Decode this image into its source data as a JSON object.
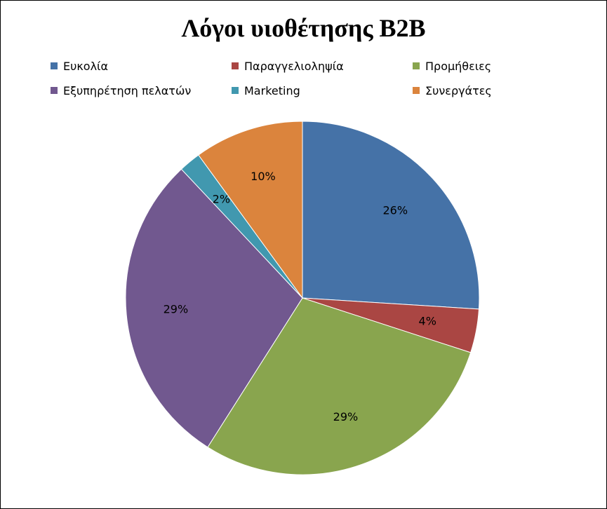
{
  "chart_data": {
    "type": "pie",
    "title": "Λόγοι υιοθέτησης B2B",
    "legend_position": "top",
    "categories": [
      "Ευκολία",
      "Παραγγελιοληψία",
      "Προμήθειες",
      "Εξυπηρέτηση πελατών",
      "Marketing",
      "Συνεργάτες"
    ],
    "values": [
      26,
      4,
      29,
      29,
      2,
      10
    ],
    "labels": [
      "26%",
      "4%",
      "29%",
      "29%",
      "2%",
      "10%"
    ],
    "colors": [
      "#4572A7",
      "#AA4643",
      "#89A54E",
      "#71588F",
      "#4198AF",
      "#DB843D"
    ]
  }
}
